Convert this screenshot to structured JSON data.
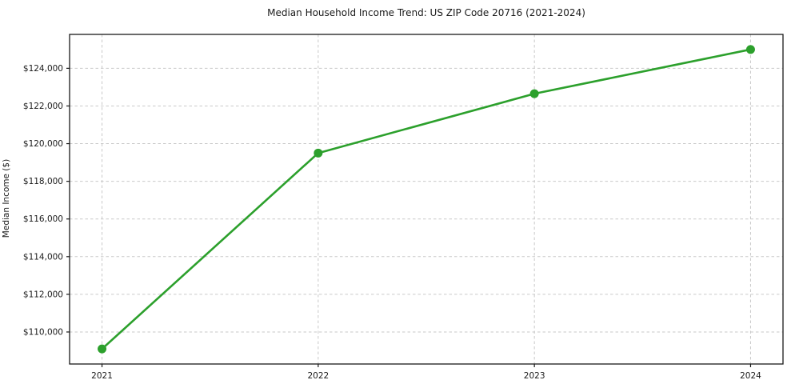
{
  "title": "Median Household Income Trend: US ZIP Code 20716 (2021-2024)",
  "chart_data": {
    "type": "line",
    "title": "Median Household Income Trend: US ZIP Code 20716 (2021-2024)",
    "xlabel": "",
    "ylabel": "Median Income ($)",
    "x": [
      2021,
      2022,
      2023,
      2024
    ],
    "x_tick_labels": [
      "2021",
      "2022",
      "2023",
      "2024"
    ],
    "series": [
      {
        "name": "Median Household Income",
        "values": [
          109100,
          119500,
          122650,
          125000
        ]
      }
    ],
    "y_ticks": [
      110000,
      112000,
      114000,
      116000,
      118000,
      120000,
      122000,
      124000
    ],
    "y_tick_labels": [
      "$110,000",
      "$112,000",
      "$114,000",
      "$116,000",
      "$118,000",
      "$120,000",
      "$122,000",
      "$124,000"
    ],
    "xlim": [
      2020.85,
      2024.15
    ],
    "ylim": [
      108300,
      125800
    ],
    "grid": true,
    "grid_style": "dashed",
    "legend": false,
    "line_color": "#2ca02c",
    "marker": "circle",
    "grid_color": "#c9c9c9",
    "spine_color": "#1a1a1a",
    "background_color": "#ffffff"
  }
}
